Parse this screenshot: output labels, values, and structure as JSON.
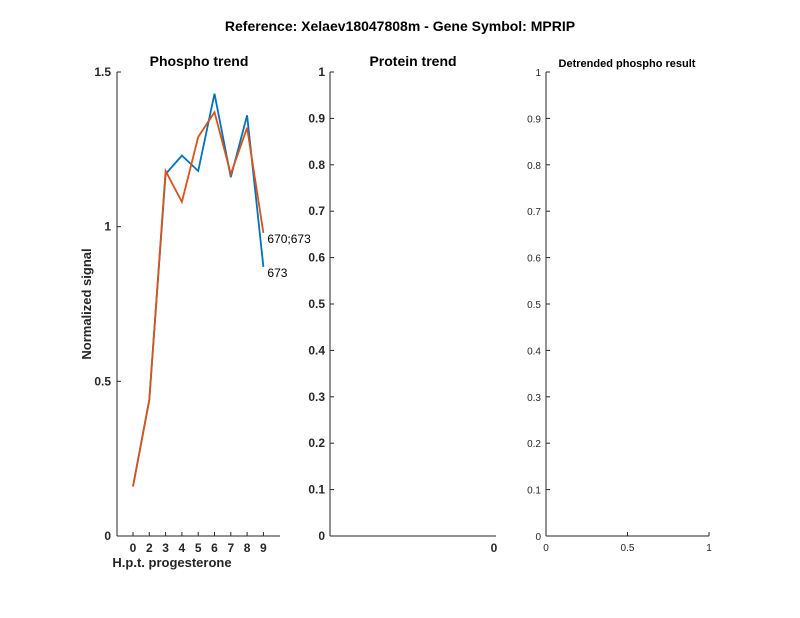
{
  "figure_title": "Reference:  Xelaev18047808m - Gene Symbol:  MPRIP",
  "chart_data": [
    {
      "type": "line",
      "title": "Phospho trend",
      "xlabel": "H.p.t. progesterone",
      "ylabel": "Normalized signal",
      "categories": [
        "0",
        "2",
        "3",
        "4",
        "5",
        "6",
        "7",
        "8",
        "9"
      ],
      "ylim": [
        0,
        1.5
      ],
      "yticks": [
        "0",
        "0.5",
        "1",
        "1.5"
      ],
      "series": [
        {
          "name": "673",
          "color": "#0072BD",
          "values": [
            0.16,
            0.44,
            1.17,
            1.23,
            1.18,
            1.43,
            1.16,
            1.36,
            0.87
          ]
        },
        {
          "name": "670;673",
          "color": "#D95319",
          "values": [
            0.16,
            0.44,
            1.18,
            1.08,
            1.29,
            1.37,
            1.17,
            1.32,
            0.98
          ]
        }
      ]
    },
    {
      "type": "line",
      "title": "Protein trend",
      "categories": [
        "0"
      ],
      "ylim": [
        0,
        1
      ],
      "yticks": [
        "0",
        "0.1",
        "0.2",
        "0.3",
        "0.4",
        "0.5",
        "0.6",
        "0.7",
        "0.8",
        "0.9",
        "1"
      ],
      "series": []
    },
    {
      "type": "line",
      "title": "Detrended phospho result",
      "xlim": [
        0,
        1
      ],
      "xticks": [
        "0",
        "0.5",
        "1"
      ],
      "ylim": [
        0,
        1
      ],
      "yticks": [
        "0",
        "0.1",
        "0.2",
        "0.3",
        "0.4",
        "0.5",
        "0.6",
        "0.7",
        "0.8",
        "0.9",
        "1"
      ],
      "series": []
    }
  ]
}
